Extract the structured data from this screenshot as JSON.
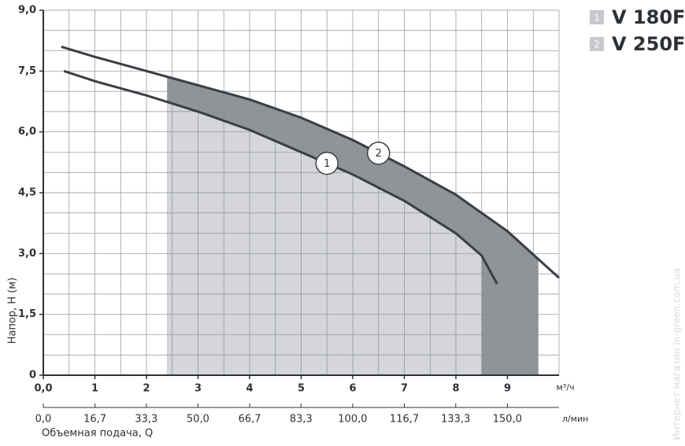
{
  "chart_data": {
    "type": "line",
    "y_label": "Напор, H (м)",
    "x_label": "Объемная подача, Q",
    "x_unit": "м³/ч",
    "x2_unit": "л/мин",
    "watermark": "Интернет магазин  in-green.com.ua",
    "xlim": [
      0,
      10
    ],
    "ylim": [
      0,
      9
    ],
    "xticks": [
      {
        "value": 0,
        "label": "0,0"
      },
      1,
      2,
      3,
      4,
      5,
      6,
      7,
      8,
      9
    ],
    "yticks": [
      {
        "value": 0,
        "label": "0"
      },
      {
        "value": 1.5,
        "label": "1,5"
      },
      {
        "value": 3,
        "label": "3,0"
      },
      {
        "value": 4.5,
        "label": "4,5"
      },
      {
        "value": 6,
        "label": "6,0"
      },
      {
        "value": 7.5,
        "label": "7,5"
      },
      {
        "value": 9,
        "label": "9,0"
      }
    ],
    "x2lim": [
      0,
      166.7
    ],
    "x2ticks": [
      {
        "value": 0,
        "label": "0,0"
      },
      {
        "value": 16.7,
        "label": "16,7"
      },
      {
        "value": 33.3,
        "label": "33,3"
      },
      {
        "value": 50,
        "label": "50,0"
      },
      {
        "value": 66.7,
        "label": "66,7"
      },
      {
        "value": 83.3,
        "label": "83,3"
      },
      {
        "value": 100,
        "label": "100,0"
      },
      {
        "value": 116.7,
        "label": "116,7"
      },
      {
        "value": 133.3,
        "label": "133,3"
      },
      {
        "value": 150,
        "label": "150,0"
      }
    ],
    "grid": true,
    "grid_step": 0.5,
    "series": [
      {
        "name": "V 180F",
        "label": "1",
        "color": "#3a3f45",
        "fill": "#d4d6d9",
        "range": [
          2.4,
          8.5
        ],
        "x": [
          0.4,
          1,
          2,
          3,
          4,
          5,
          6,
          7,
          8,
          8.5,
          8.8
        ],
        "values": [
          7.5,
          7.25,
          6.9,
          6.5,
          6.05,
          5.5,
          4.95,
          4.3,
          3.5,
          2.95,
          2.25
        ]
      },
      {
        "name": "V 250F",
        "label": "2",
        "color": "#3a3f45",
        "fill": "#909398",
        "range": [
          2.4,
          9.6
        ],
        "x": [
          0.35,
          1,
          2,
          3,
          4,
          5,
          6,
          7,
          8,
          9,
          10
        ],
        "values": [
          8.1,
          7.85,
          7.5,
          7.15,
          6.8,
          6.35,
          5.8,
          5.15,
          4.45,
          3.55,
          2.4
        ]
      }
    ]
  }
}
